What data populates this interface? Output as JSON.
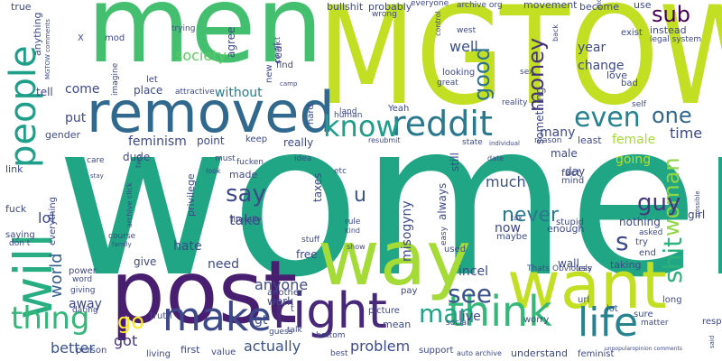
{
  "cloud": {
    "words": [
      {
        "text": "women",
        "color": "#21a685"
      },
      {
        "text": "MGTOW",
        "color": "#c2df23"
      },
      {
        "text": "men",
        "color": "#44bf70"
      },
      {
        "text": "post",
        "color": "#481f70"
      },
      {
        "text": "way",
        "color": "#a5db36"
      },
      {
        "text": "want",
        "color": "#c2df23"
      },
      {
        "text": "removed",
        "color": "#31688e"
      },
      {
        "text": "will",
        "color": "#27ad81"
      },
      {
        "text": "people",
        "color": "#1f9e89"
      },
      {
        "text": "right",
        "color": "#482878"
      },
      {
        "text": "make",
        "color": "#3e4989"
      },
      {
        "text": "think",
        "color": "#35b779"
      },
      {
        "text": "life",
        "color": "#26828e"
      },
      {
        "text": "reddit",
        "color": "#2a788e"
      },
      {
        "text": "know",
        "color": "#1f9e89"
      },
      {
        "text": "even",
        "color": "#26828e"
      },
      {
        "text": "thing",
        "color": "#35b779"
      },
      {
        "text": "see",
        "color": "#3b528b"
      },
      {
        "text": "man",
        "color": "#20a486"
      },
      {
        "text": "shit",
        "color": "#2db27d"
      },
      {
        "text": "woman",
        "color": "#90d743"
      },
      {
        "text": "say",
        "color": "#3e4989"
      },
      {
        "text": "guy",
        "color": "#453781"
      },
      {
        "text": "never",
        "color": "#2a788e"
      },
      {
        "text": "money",
        "color": "#46337e"
      },
      {
        "text": "good",
        "color": "#2c728e"
      },
      {
        "text": "one",
        "color": "#31688e"
      },
      {
        "text": "sub",
        "color": "#440154"
      },
      {
        "text": "go",
        "color": "#fde725"
      },
      {
        "text": "u",
        "color": "#3b528b"
      },
      {
        "text": "s",
        "color": "#3e4989"
      },
      {
        "text": "society",
        "color": "#5ec962"
      },
      {
        "text": "well",
        "color": "#3b528b"
      },
      {
        "text": "world",
        "color": "#355f8d"
      },
      {
        "text": "got",
        "color": "#46337e"
      },
      {
        "text": "better",
        "color": "#3b528b"
      },
      {
        "text": "lol",
        "color": "#3e4989"
      },
      {
        "text": "much",
        "color": "#3b528b"
      },
      {
        "text": "take",
        "color": "#3e4989"
      },
      {
        "text": "anyone",
        "color": "#3e4989"
      },
      {
        "text": "problem",
        "color": "#3e4989"
      },
      {
        "text": "actually",
        "color": "#3b528b"
      },
      {
        "text": "time",
        "color": "#3e4989"
      },
      {
        "text": "female",
        "color": "#a5db36"
      },
      {
        "text": "going",
        "color": "#b5de2b"
      },
      {
        "text": "come",
        "color": "#3e4989"
      },
      {
        "text": "without",
        "color": "#287c8e"
      },
      {
        "text": "need",
        "color": "#3e4989"
      },
      {
        "text": "hate",
        "color": "#3e4989"
      },
      {
        "text": "live",
        "color": "#3e4989"
      },
      {
        "text": "incel",
        "color": "#3e4989"
      },
      {
        "text": "feminism",
        "color": "#3e4989"
      },
      {
        "text": "year",
        "color": "#3e4989"
      },
      {
        "text": "change",
        "color": "#3e4989"
      },
      {
        "text": "many",
        "color": "#3e4989"
      },
      {
        "text": "put",
        "color": "#3e4989"
      },
      {
        "text": "away",
        "color": "#3e4989"
      },
      {
        "text": "misogyny",
        "color": "#3e4989"
      },
      {
        "text": "always",
        "color": "#3e4989"
      },
      {
        "text": "still",
        "color": "#3e4989"
      },
      {
        "text": "something",
        "color": "#3e4989"
      },
      {
        "text": "taxes",
        "color": "#3e4989"
      },
      {
        "text": "work",
        "color": "#3e4989"
      },
      {
        "text": "gt",
        "color": "#3e4989"
      },
      {
        "text": "now",
        "color": "#3e4989"
      },
      {
        "text": "give",
        "color": "#3e4989"
      },
      {
        "text": "dude",
        "color": "#3e4989"
      },
      {
        "text": "male",
        "color": "#3e4989"
      },
      {
        "text": "day",
        "color": "#3e4989"
      },
      {
        "text": "nothing",
        "color": "#3e4989"
      },
      {
        "text": "really",
        "color": "#3e4989"
      },
      {
        "text": "free",
        "color": "#3e4989"
      },
      {
        "text": "place",
        "color": "#3e4989"
      },
      {
        "text": "point",
        "color": "#3e4989"
      },
      {
        "text": "agree",
        "color": "#3e4989"
      },
      {
        "text": "wall",
        "color": "#3e4989"
      },
      {
        "text": "girl",
        "color": "#3e4989"
      },
      {
        "text": "tell",
        "color": "#3e4989"
      },
      {
        "text": "gender",
        "color": "#3e4989"
      },
      {
        "text": "link",
        "color": "#3e4989"
      },
      {
        "text": "fuck",
        "color": "#3e4989"
      },
      {
        "text": "made",
        "color": "#3e4989"
      },
      {
        "text": "fucken",
        "color": "#3e4989"
      },
      {
        "text": "privilege",
        "color": "#3e4989"
      },
      {
        "text": "true",
        "color": "#3e4989"
      },
      {
        "text": "anything",
        "color": "#3e4989"
      },
      {
        "text": "west",
        "color": "#3e4989"
      },
      {
        "text": "bullshit",
        "color": "#3e4989"
      },
      {
        "text": "probably",
        "color": "#3e4989"
      },
      {
        "text": "everyone",
        "color": "#3e4989"
      },
      {
        "text": "archive org",
        "color": "#3e4989"
      },
      {
        "text": "movement",
        "color": "#3e4989"
      },
      {
        "text": "become",
        "color": "#3e4989"
      },
      {
        "text": "use",
        "color": "#3e4989"
      },
      {
        "text": "exist",
        "color": "#3e4989"
      },
      {
        "text": "instead",
        "color": "#3e4989"
      },
      {
        "text": "legal system",
        "color": "#3e4989"
      },
      {
        "text": "love",
        "color": "#3e4989"
      },
      {
        "text": "bad",
        "color": "#3e4989"
      },
      {
        "text": "find",
        "color": "#3e4989"
      },
      {
        "text": "new",
        "color": "#3e4989"
      },
      {
        "text": "real",
        "color": "#3e4989"
      },
      {
        "text": "let",
        "color": "#3e4989"
      },
      {
        "text": "attractive",
        "color": "#3e4989"
      },
      {
        "text": "mod",
        "color": "#3e4989"
      },
      {
        "text": "imagine",
        "color": "#3e4989"
      },
      {
        "text": "trying",
        "color": "#3e4989"
      },
      {
        "text": "keep",
        "color": "#3e4989"
      },
      {
        "text": "hard",
        "color": "#3e4989"
      },
      {
        "text": "human",
        "color": "#3e4989"
      },
      {
        "text": "land",
        "color": "#3e4989"
      },
      {
        "text": "Yeah",
        "color": "#3e4989"
      },
      {
        "text": "reality",
        "color": "#3e4989"
      },
      {
        "text": "self",
        "color": "#3e4989"
      },
      {
        "text": "looking",
        "color": "#3e4989"
      },
      {
        "text": "great",
        "color": "#3e4989"
      },
      {
        "text": "sex",
        "color": "#3e4989"
      },
      {
        "text": "state",
        "color": "#3e4989"
      },
      {
        "text": "individual",
        "color": "#3e4989"
      },
      {
        "text": "reason",
        "color": "#3e4989"
      },
      {
        "text": "least",
        "color": "#3e4989"
      },
      {
        "text": "fact",
        "color": "#3e4989"
      },
      {
        "text": "mind",
        "color": "#3e4989"
      },
      {
        "text": "enough",
        "color": "#3e4989"
      },
      {
        "text": "date",
        "color": "#3e4989"
      },
      {
        "text": "tax",
        "color": "#3e4989"
      },
      {
        "text": "rule",
        "color": "#3e4989"
      },
      {
        "text": "kind",
        "color": "#3e4989"
      },
      {
        "text": "idea",
        "color": "#3e4989"
      },
      {
        "text": "literally",
        "color": "#3e4989"
      },
      {
        "text": "stuff",
        "color": "#3e4989"
      },
      {
        "text": "show",
        "color": "#3e4989"
      },
      {
        "text": "easy",
        "color": "#3e4989"
      },
      {
        "text": "used",
        "color": "#3e4989"
      },
      {
        "text": "maybe",
        "color": "#3e4989"
      },
      {
        "text": "stupid",
        "color": "#3e4989"
      },
      {
        "text": "try",
        "color": "#3e4989"
      },
      {
        "text": "end",
        "color": "#3e4989"
      },
      {
        "text": "asked",
        "color": "#3e4989"
      },
      {
        "text": "taking",
        "color": "#3e4989"
      },
      {
        "text": "less",
        "color": "#3e4989"
      },
      {
        "text": "Obviously",
        "color": "#3e4989"
      },
      {
        "text": "Thats",
        "color": "#3e4989"
      },
      {
        "text": "pay",
        "color": "#3e4989"
      },
      {
        "text": "picture",
        "color": "#3e4989"
      },
      {
        "text": "mean",
        "color": "#3e4989"
      },
      {
        "text": "social",
        "color": "#3e4989"
      },
      {
        "text": "worry",
        "color": "#3e4989"
      },
      {
        "text": "url",
        "color": "#3e4989"
      },
      {
        "text": "lot",
        "color": "#3e4989"
      },
      {
        "text": "sure",
        "color": "#3e4989"
      },
      {
        "text": "respect",
        "color": "#3e4989"
      },
      {
        "text": "long",
        "color": "#3e4989"
      },
      {
        "text": "matter",
        "color": "#3e4989"
      },
      {
        "text": "understand",
        "color": "#3e4989"
      },
      {
        "text": "feminist",
        "color": "#3e4989"
      },
      {
        "text": "auto archive",
        "color": "#3e4989"
      },
      {
        "text": "best",
        "color": "#3e4989"
      },
      {
        "text": "support",
        "color": "#3e4989"
      },
      {
        "text": "guess",
        "color": "#3e4989"
      },
      {
        "text": "talk",
        "color": "#3e4989"
      },
      {
        "text": "bottom",
        "color": "#3e4989"
      },
      {
        "text": "another",
        "color": "#3e4989"
      },
      {
        "text": "first",
        "color": "#3e4989"
      },
      {
        "text": "value",
        "color": "#3e4989"
      },
      {
        "text": "living",
        "color": "#3e4989"
      },
      {
        "text": "truth",
        "color": "#3e4989"
      },
      {
        "text": "person",
        "color": "#3e4989"
      },
      {
        "text": "power",
        "color": "#3e4989"
      },
      {
        "text": "word",
        "color": "#3e4989"
      },
      {
        "text": "giving",
        "color": "#3e4989"
      },
      {
        "text": "dating",
        "color": "#3e4989"
      },
      {
        "text": "saying",
        "color": "#3e4989"
      },
      {
        "text": "don t",
        "color": "#3e4989"
      },
      {
        "text": "course",
        "color": "#3e4989"
      },
      {
        "text": "family",
        "color": "#3e4989"
      },
      {
        "text": "everything",
        "color": "#3e4989"
      },
      {
        "text": "archive click",
        "color": "#3e4989"
      },
      {
        "text": "care",
        "color": "#3e4989"
      },
      {
        "text": "stay",
        "color": "#3e4989"
      },
      {
        "text": "two",
        "color": "#3e4989"
      },
      {
        "text": "must",
        "color": "#3e4989"
      },
      {
        "text": "look",
        "color": "#3e4989"
      },
      {
        "text": "etc",
        "color": "#3e4989"
      },
      {
        "text": "resubmit",
        "color": "#3e4989"
      },
      {
        "text": "model",
        "color": "#3e4989"
      },
      {
        "text": "wrong",
        "color": "#3e4989"
      },
      {
        "text": "control",
        "color": "#3e4989"
      },
      {
        "text": "back",
        "color": "#3e4989"
      },
      {
        "text": "conflict",
        "color": "#3e4989"
      },
      {
        "text": "camp",
        "color": "#3e4989"
      },
      {
        "text": "unpopularopinion comments",
        "color": "#3e4989"
      },
      {
        "text": "possible",
        "color": "#3e4989"
      },
      {
        "text": "said",
        "color": "#3e4989"
      },
      {
        "text": "MGTOW comments",
        "color": "#3e4989"
      },
      {
        "text": "X",
        "color": "#3e4989"
      },
      {
        "text": "t",
        "color": "#3e4989"
      }
    ]
  }
}
